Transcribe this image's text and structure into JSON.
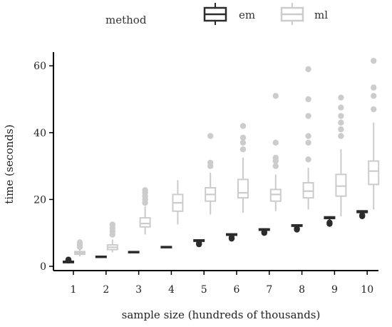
{
  "legend": {
    "title": "method",
    "items": [
      {
        "label": "em",
        "color": "#2b2b2b"
      },
      {
        "label": "ml",
        "color": "#cccccc"
      }
    ]
  },
  "chart_data": {
    "type": "boxplot",
    "xlabel": "sample size (hundreds of thousands)",
    "ylabel": "time (seconds)",
    "categories": [
      "1",
      "2",
      "3",
      "4",
      "5",
      "6",
      "7",
      "8",
      "9",
      "10"
    ],
    "ylim": [
      -1,
      64
    ],
    "yticks": [
      0,
      20,
      40,
      60
    ],
    "grid": false,
    "legend_position": "top",
    "series": [
      {
        "name": "em",
        "color": "#2b2b2b",
        "boxes": [
          {
            "min": 0.9,
            "q1": 1.1,
            "median": 1.3,
            "q3": 1.5,
            "max": 1.7,
            "outliers": [
              1.8,
              2.0
            ]
          },
          {
            "min": 2.5,
            "q1": 2.8,
            "median": 2.9,
            "q3": 3.0,
            "max": 3.1,
            "outliers": []
          },
          {
            "min": 4.0,
            "q1": 4.2,
            "median": 4.3,
            "q3": 4.4,
            "max": 4.5,
            "outliers": []
          },
          {
            "min": 5.5,
            "q1": 5.7,
            "median": 5.8,
            "q3": 5.9,
            "max": 6.0,
            "outliers": []
          },
          {
            "min": 7.2,
            "q1": 7.5,
            "median": 7.7,
            "q3": 7.9,
            "max": 8.1,
            "outliers": [
              6.6,
              6.9
            ]
          },
          {
            "min": 9.0,
            "q1": 9.3,
            "median": 9.5,
            "q3": 9.7,
            "max": 9.9,
            "outliers": [
              8.3,
              8.6
            ]
          },
          {
            "min": 10.5,
            "q1": 10.8,
            "median": 11.0,
            "q3": 11.2,
            "max": 11.4,
            "outliers": [
              10.0,
              10.3
            ]
          },
          {
            "min": 11.8,
            "q1": 12.0,
            "median": 12.2,
            "q3": 12.4,
            "max": 12.6,
            "outliers": [
              11.0,
              11.3
            ]
          },
          {
            "min": 13.9,
            "q1": 14.3,
            "median": 14.6,
            "q3": 14.8,
            "max": 15.0,
            "outliers": [
              12.7,
              13.1
            ]
          },
          {
            "min": 15.6,
            "q1": 16.1,
            "median": 16.4,
            "q3": 16.6,
            "max": 16.8,
            "outliers": [
              15.0,
              15.3
            ]
          }
        ]
      },
      {
        "name": "ml",
        "color": "#cccccc",
        "boxes": [
          {
            "min": 3.0,
            "q1": 3.6,
            "median": 4.0,
            "q3": 4.4,
            "max": 5.2,
            "outliers": [
              5.8,
              6.5,
              7.2
            ]
          },
          {
            "min": 4.2,
            "q1": 5.0,
            "median": 5.7,
            "q3": 6.4,
            "max": 8.0,
            "outliers": [
              9.5,
              10.5,
              11.5,
              12.5
            ]
          },
          {
            "min": 9.5,
            "q1": 11.8,
            "median": 12.8,
            "q3": 14.5,
            "max": 18.0,
            "outliers": [
              19.0,
              20.0,
              21.0,
              22.0,
              22.8
            ]
          },
          {
            "min": 12.5,
            "q1": 16.5,
            "median": 19.0,
            "q3": 21.5,
            "max": 25.8,
            "outliers": []
          },
          {
            "min": 15.5,
            "q1": 19.5,
            "median": 21.5,
            "q3": 23.5,
            "max": 28.0,
            "outliers": [
              30.0,
              31.0,
              39.0
            ]
          },
          {
            "min": 16.0,
            "q1": 20.5,
            "median": 22.0,
            "q3": 26.0,
            "max": 32.5,
            "outliers": [
              35.0,
              37.0,
              38.5,
              42.0
            ]
          },
          {
            "min": 16.5,
            "q1": 19.5,
            "median": 21.5,
            "q3": 23.0,
            "max": 27.5,
            "outliers": [
              30.0,
              31.5,
              32.5,
              37.0,
              51.0
            ]
          },
          {
            "min": 17.0,
            "q1": 20.5,
            "median": 22.5,
            "q3": 25.0,
            "max": 29.5,
            "outliers": [
              32.0,
              37.0,
              39.0,
              45.0,
              50.0,
              59.0
            ]
          },
          {
            "min": 15.0,
            "q1": 21.0,
            "median": 24.0,
            "q3": 27.5,
            "max": 35.0,
            "outliers": [
              39.0,
              41.0,
              43.0,
              45.0,
              47.5,
              50.5
            ]
          },
          {
            "min": 17.0,
            "q1": 24.5,
            "median": 28.5,
            "q3": 31.5,
            "max": 43.0,
            "outliers": [
              47.0,
              51.0,
              53.5,
              61.5
            ]
          }
        ]
      }
    ]
  }
}
